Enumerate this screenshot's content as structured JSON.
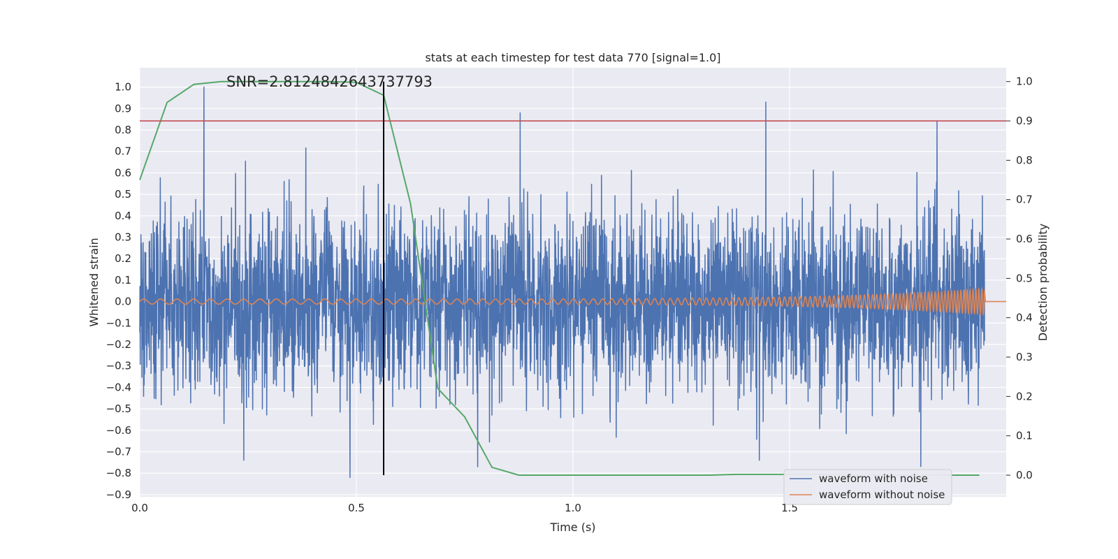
{
  "chart_data": {
    "type": "line",
    "title": "stats at each timestep for test data 770 [signal=1.0]",
    "annotation": "SNR=2.8124842643737793",
    "xlabel": "Time (s)",
    "ylabel": "Whitened strain",
    "ylabel_right": "Detection probability",
    "xlim": [
      0.0,
      2.0
    ],
    "ylim": [
      -0.91,
      1.09
    ],
    "ylim_right": [
      -0.055,
      1.035
    ],
    "x_ticks": [
      0.0,
      0.5,
      1.0,
      1.5
    ],
    "x_tick_labels": [
      "0.0",
      "0.5",
      "1.0",
      "1.5"
    ],
    "y_ticks": [
      1.0,
      0.9,
      0.8,
      0.7,
      0.6,
      0.5,
      0.4,
      0.3,
      0.2,
      0.1,
      0.0,
      -0.1,
      -0.2,
      -0.3,
      -0.4,
      -0.5,
      -0.6,
      -0.7,
      -0.8,
      -0.9
    ],
    "y_tick_labels": [
      "1.0",
      "0.9",
      "0.8",
      "0.7",
      "0.6",
      "0.5",
      "0.4",
      "0.3",
      "0.2",
      "0.1",
      "0.0",
      "−0.1",
      "−0.2",
      "−0.3",
      "−0.4",
      "−0.5",
      "−0.6",
      "−0.7",
      "−0.8",
      "−0.9"
    ],
    "y_right_ticks": [
      1.0,
      0.9,
      0.8,
      0.7,
      0.6,
      0.5,
      0.4,
      0.3,
      0.2,
      0.1,
      0.0
    ],
    "y_right_tick_labels": [
      "1.0",
      "0.9",
      "0.8",
      "0.7",
      "0.6",
      "0.5",
      "0.4",
      "0.3",
      "0.2",
      "0.1",
      "0.0"
    ],
    "threshold": 0.9,
    "marker_time": 0.563,
    "legend": {
      "placement": "lower right",
      "entries": [
        "waveform with noise",
        "waveform without noise"
      ]
    },
    "colors": {
      "noisy": "#4c72b0",
      "clean": "#dd8452",
      "probability": "#55a868",
      "threshold": "#c44e52",
      "marker": "#000000",
      "plot_bg": "#eaeaf2",
      "grid": "#ffffff"
    },
    "series": [
      {
        "name": "waveform with noise",
        "kind": "noise",
        "t_start": 0.0,
        "t_end": 1.95,
        "samples": 3500,
        "amplitude_sd": 0.21,
        "peak_points": [
          {
            "t": 0.148,
            "v": 1.0
          },
          {
            "t": 0.878,
            "v": 0.88
          },
          {
            "t": 1.445,
            "v": 0.93
          },
          {
            "t": 1.84,
            "v": 0.84
          },
          {
            "t": 0.485,
            "v": -0.82
          },
          {
            "t": 0.78,
            "v": -0.77
          },
          {
            "t": 1.43,
            "v": -0.74
          },
          {
            "t": 0.24,
            "v": -0.74
          }
        ]
      },
      {
        "name": "waveform without noise",
        "kind": "chirp",
        "t_start": 0.0,
        "t_end": 1.95,
        "amplitude_start": 0.012,
        "amplitude_end": 0.06,
        "f_start": 26,
        "f_end": 150
      },
      {
        "name": "detection probability",
        "kind": "probability",
        "x": [
          0.0,
          0.063,
          0.125,
          0.188,
          0.25,
          0.313,
          0.375,
          0.438,
          0.5,
          0.563,
          0.625,
          0.688,
          0.75,
          0.813,
          0.875,
          0.938,
          1.0,
          1.063,
          1.125,
          1.188,
          1.25,
          1.313,
          1.375,
          1.438,
          1.5,
          1.563,
          1.625,
          1.688,
          1.75,
          1.813,
          1.875,
          1.938
        ],
        "values": [
          0.75,
          0.947,
          0.993,
          1.0,
          1.0,
          1.0,
          1.0,
          1.0,
          0.998,
          0.965,
          0.69,
          0.22,
          0.148,
          0.02,
          0.0,
          0.0,
          0.0,
          0.0,
          0.0,
          0.0,
          0.0,
          0.0,
          0.002,
          0.002,
          0.002,
          0.002,
          0.001,
          0.0,
          0.0,
          0.0,
          0.0,
          0.0
        ]
      }
    ]
  }
}
